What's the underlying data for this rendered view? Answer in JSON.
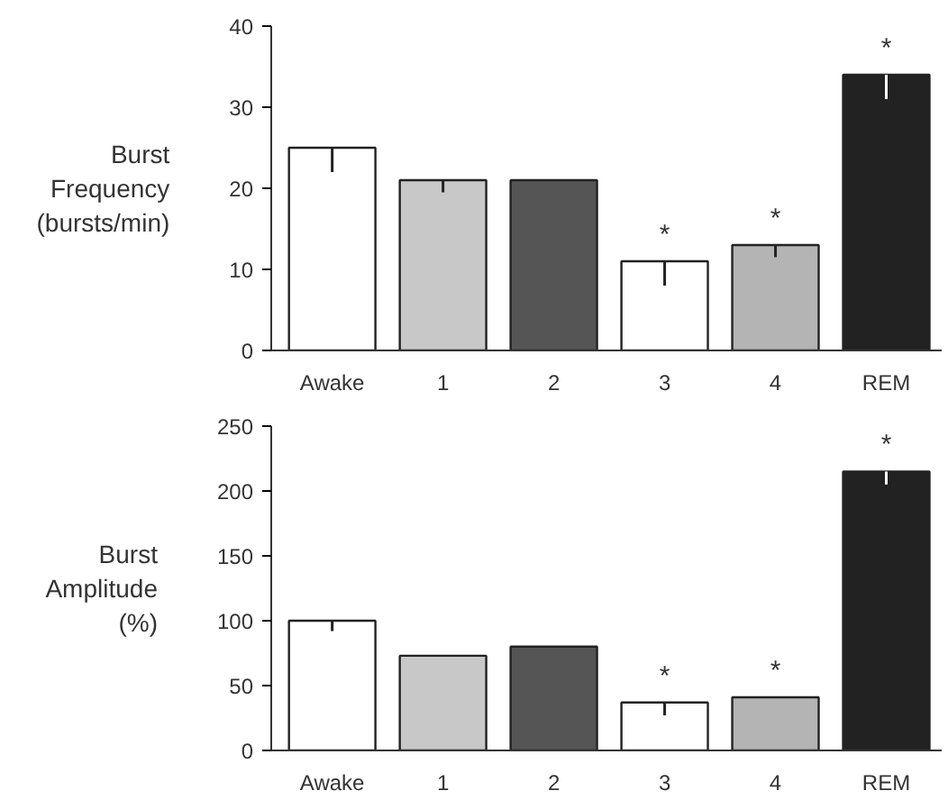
{
  "chart_data": [
    {
      "type": "bar",
      "ylabel": "Burst\nFrequency\n(bursts/min)",
      "categories": [
        "Awake",
        "1",
        "2",
        "3",
        "4",
        "REM"
      ],
      "values": [
        25,
        21,
        21,
        11,
        13,
        34
      ],
      "errors": [
        [
          22,
          25
        ],
        [
          19.5,
          21
        ],
        null,
        [
          8,
          11
        ],
        [
          11.5,
          13
        ],
        [
          31,
          34
        ]
      ],
      "colors": [
        "#ffffff",
        "#c8c8c8",
        "#555555",
        "#ffffff",
        "#b4b4b4",
        "#222222"
      ],
      "ylim": [
        0,
        40
      ],
      "yticks": [
        0,
        10,
        20,
        30,
        40
      ],
      "grid": false,
      "annotations": [
        {
          "text": "*",
          "x": "3",
          "y": 11
        },
        {
          "text": "*",
          "x": "4",
          "y": 13
        },
        {
          "text": "*",
          "x": "REM",
          "y": 34
        }
      ]
    },
    {
      "type": "bar",
      "ylabel": "Burst\nAmplitude\n(%)",
      "categories": [
        "Awake",
        "1",
        "2",
        "3",
        "4",
        "REM"
      ],
      "values": [
        100,
        73,
        80,
        37,
        41,
        215
      ],
      "errors": [
        [
          92,
          100
        ],
        null,
        null,
        [
          27,
          37
        ],
        null,
        [
          205,
          215
        ]
      ],
      "colors": [
        "#ffffff",
        "#c8c8c8",
        "#555555",
        "#ffffff",
        "#b4b4b4",
        "#222222"
      ],
      "ylim": [
        0,
        250
      ],
      "yticks": [
        0,
        50,
        100,
        150,
        200,
        250
      ],
      "grid": false,
      "annotations": [
        {
          "text": "*",
          "x": "3",
          "y": 37
        },
        {
          "text": "*",
          "x": "4",
          "y": 41
        },
        {
          "text": "*",
          "x": "REM",
          "y": 215
        }
      ]
    }
  ]
}
